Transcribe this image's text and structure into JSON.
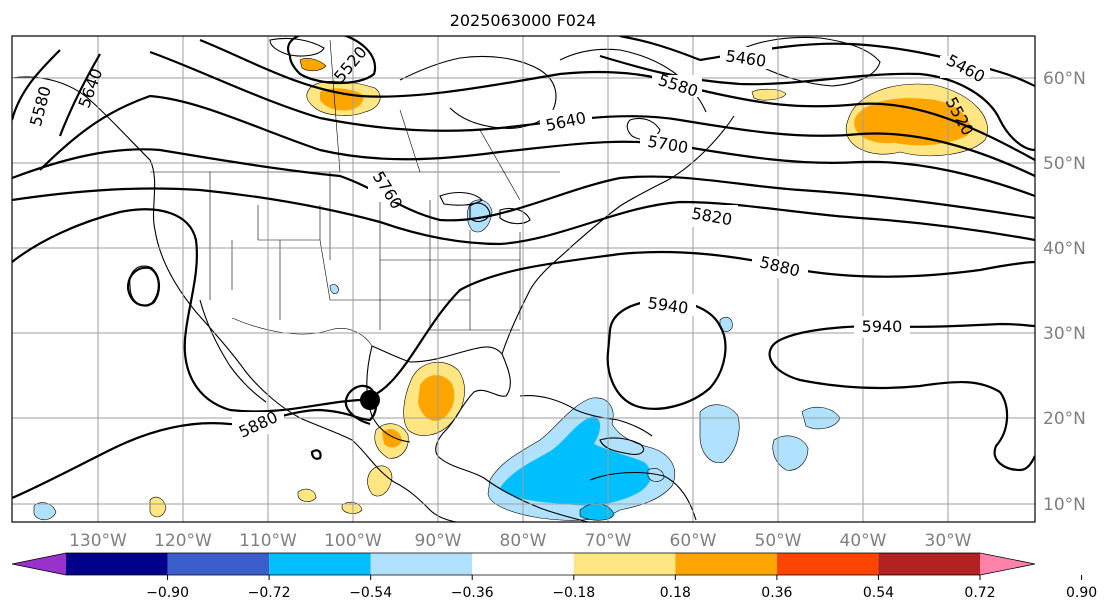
{
  "title": "2025063000 F024",
  "lon_labels": [
    "130°W",
    "120°W",
    "110°W",
    "100°W",
    "90°W",
    "80°W",
    "70°W",
    "60°W",
    "50°W",
    "40°W",
    "30°W"
  ],
  "lat_labels": [
    "60°N",
    "50°N",
    "40°N",
    "30°N",
    "20°N",
    "10°N"
  ],
  "contour_labels": {
    "c5460a": "5460",
    "c5460b": "5460",
    "c5520a": "5520",
    "c5520b": "5520",
    "c5580a": "5580",
    "c5580b": "5580",
    "c5640a": "5640",
    "c5640b": "5640",
    "c5700": "5700",
    "c5760": "5760",
    "c5820": "5820",
    "c5880a": "5880",
    "c5880b": "5880",
    "c5940a": "5940",
    "c5940b": "5940"
  },
  "colorbar": {
    "ticks": [
      "−0.90",
      "−0.72",
      "−0.54",
      "−0.36",
      "−0.18",
      "0.18",
      "0.36",
      "0.54",
      "0.72",
      "0.90"
    ],
    "colors": [
      "#9932cc",
      "#00008b",
      "#3a5fcd",
      "#00bfff",
      "#b0e2ff",
      "#ffffff",
      "#ffe682",
      "#ffa500",
      "#ff4500",
      "#b22222",
      "#ff82ab"
    ]
  },
  "shading_colors": {
    "light_blue": "#b0e2ff",
    "deep_sky_blue": "#00bfff",
    "light_yellow": "#ffe682",
    "orange": "#ffa500"
  }
}
